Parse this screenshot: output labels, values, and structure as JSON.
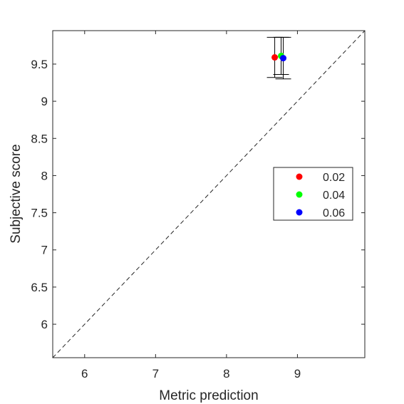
{
  "chart_data": {
    "type": "scatter",
    "xlabel": "Metric prediction",
    "ylabel": "Subjective score",
    "xlim": [
      5.55,
      9.95
    ],
    "ylim": [
      5.55,
      9.95
    ],
    "xticks": [
      "6",
      "7",
      "8",
      "9"
    ],
    "yticks": [
      "6",
      "6.5",
      "7",
      "7.5",
      "8",
      "8.5",
      "9",
      "9.5"
    ],
    "grid": false,
    "legend_position": "right",
    "reference_line": "y = x (dashed)",
    "series": [
      {
        "name": "0.02",
        "color": "#ff0000",
        "x": 8.68,
        "y": 9.59,
        "err_low": 9.32,
        "err_high": 9.86
      },
      {
        "name": "0.04",
        "color": "#00ff00",
        "x": 8.77,
        "y": 9.61,
        "err_low": 9.36,
        "err_high": 9.86
      },
      {
        "name": "0.06",
        "color": "#0000ff",
        "x": 8.8,
        "y": 9.58,
        "err_low": 9.3,
        "err_high": 9.86
      }
    ]
  }
}
